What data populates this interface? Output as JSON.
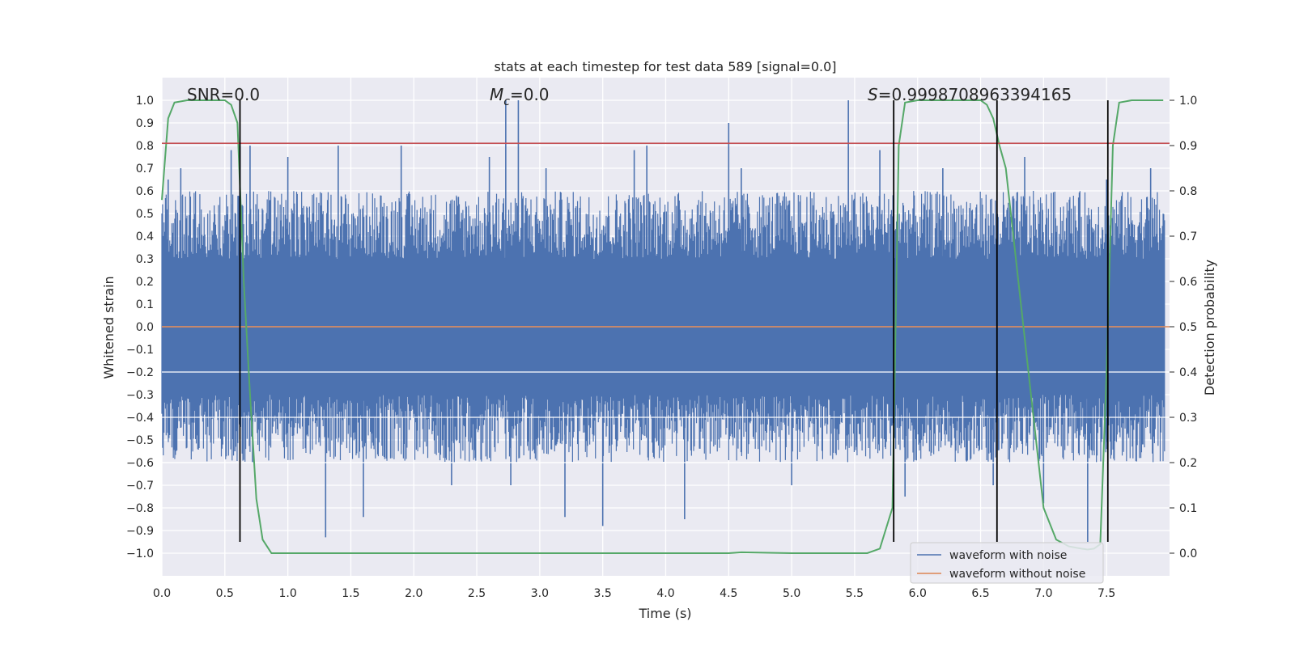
{
  "chart_data": {
    "type": "line",
    "title": "stats at each timestep for test data 589 [signal=0.0]",
    "xlabel": "Time (s)",
    "ylabel": "Whitened strain",
    "y2label": "Detection probability",
    "xlim": [
      0.0,
      8.0
    ],
    "ylim": [
      -1.1,
      1.1
    ],
    "y2lim": [
      -0.05,
      1.05
    ],
    "x_ticks": [
      "0.0",
      "0.5",
      "1.0",
      "1.5",
      "2.0",
      "2.5",
      "3.0",
      "3.5",
      "4.0",
      "4.5",
      "5.0",
      "5.5",
      "6.0",
      "6.5",
      "7.0",
      "7.5"
    ],
    "y_ticks": [
      "1.0",
      "0.9",
      "0.8",
      "0.7",
      "0.6",
      "0.5",
      "0.4",
      "0.3",
      "0.2",
      "0.1",
      "0.0",
      "-0.1",
      "-0.2",
      "-0.3",
      "-0.4",
      "-0.5",
      "-0.6",
      "-0.7",
      "-0.8",
      "-0.9",
      "-1.0"
    ],
    "y2_ticks": [
      "1.0",
      "0.9",
      "0.8",
      "0.7",
      "0.6",
      "0.5",
      "0.4",
      "0.3",
      "0.2",
      "0.1",
      "0.0"
    ],
    "grid": true,
    "legend_placement": "lower-right",
    "annotations": {
      "snr": "SNR=0.0",
      "mc": "M",
      "mc_sub": "c",
      "mc_value": "=0.0",
      "s_symbol": "S",
      "s_value": "=0.9998708963394165"
    },
    "series": [
      {
        "name": "waveform with noise",
        "color": "#4c72b0",
        "axis": "left",
        "description_values": "dense noise spanning roughly -0.4..0.4 with spikes to about +/-1.0",
        "spikes_x": [
          0.05,
          0.15,
          0.55,
          0.58,
          0.62,
          0.7,
          0.72,
          1.0,
          1.3,
          1.4,
          1.6,
          1.9,
          2.3,
          2.6,
          2.73,
          2.77,
          2.83,
          3.05,
          3.2,
          3.5,
          3.75,
          3.85,
          4.15,
          4.5,
          4.6,
          5.0,
          5.45,
          5.7,
          5.9,
          6.2,
          6.6,
          6.85,
          7.0,
          7.35,
          7.5,
          7.85
        ],
        "spikes_y": [
          0.65,
          0.7,
          0.78,
          -0.55,
          0.8,
          0.8,
          -0.6,
          0.75,
          -0.93,
          0.8,
          -0.84,
          0.8,
          -0.7,
          0.75,
          1.0,
          -0.7,
          1.0,
          0.7,
          -0.84,
          -0.88,
          0.78,
          0.8,
          -0.85,
          0.9,
          0.7,
          -0.7,
          1.0,
          0.78,
          -0.75,
          0.7,
          -0.7,
          0.75,
          -0.78,
          -0.95,
          0.65,
          0.7
        ]
      },
      {
        "name": "waveform without noise",
        "color": "#dd8452",
        "axis": "left",
        "x": [
          0.0,
          8.0
        ],
        "y": [
          0.0,
          0.0
        ]
      },
      {
        "name": "",
        "color": "#55a868",
        "axis": "right",
        "x": [
          0.0,
          0.05,
          0.1,
          0.2,
          0.3,
          0.4,
          0.5,
          0.55,
          0.6,
          0.65,
          0.7,
          0.75,
          0.8,
          0.87,
          1.0,
          2.0,
          3.0,
          4.0,
          4.5,
          4.6,
          5.0,
          5.6,
          5.7,
          5.8,
          5.85,
          5.9,
          6.0,
          6.3,
          6.5,
          6.55,
          6.6,
          6.65,
          6.7,
          6.8,
          6.9,
          7.0,
          7.1,
          7.2,
          7.3,
          7.35,
          7.4,
          7.45,
          7.5,
          7.55,
          7.6,
          7.7,
          7.8,
          7.95
        ],
        "y": [
          0.78,
          0.96,
          0.995,
          1.0,
          1.0,
          1.0,
          1.0,
          0.99,
          0.95,
          0.6,
          0.35,
          0.12,
          0.03,
          0.0,
          0.0,
          0.0,
          0.0,
          0.0,
          0.0,
          0.002,
          0.0,
          0.0,
          0.01,
          0.1,
          0.9,
          0.995,
          1.0,
          1.0,
          1.0,
          0.99,
          0.96,
          0.9,
          0.85,
          0.6,
          0.35,
          0.1,
          0.03,
          0.015,
          0.01,
          0.008,
          0.01,
          0.02,
          0.4,
          0.9,
          0.995,
          1.0,
          1.0,
          1.0
        ]
      },
      {
        "name": "",
        "color": "#c44e52",
        "axis": "left",
        "x": [
          0.0,
          8.0
        ],
        "y": [
          0.81,
          0.81
        ]
      }
    ],
    "vertical_lines_x": [
      0.62,
      5.81,
      6.63,
      7.51
    ],
    "vertical_lines_range": [
      -0.95,
      1.0
    ],
    "vertical_lines_color": "#000000",
    "background_color": "#eaeaf2",
    "grid_color": "#ffffff"
  }
}
